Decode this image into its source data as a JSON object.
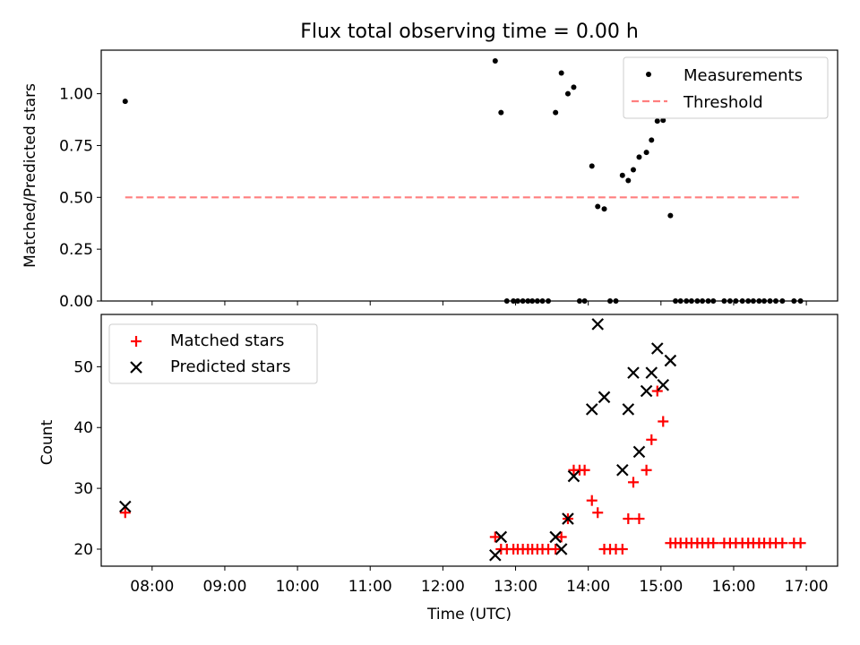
{
  "chart_data": [
    {
      "type": "scatter",
      "title": "Flux total observing time = 0.00 h",
      "xlabel": "",
      "ylabel": "Matched/Predicted stars",
      "ylim": [
        0,
        1.21
      ],
      "y_ticks": [
        0.0,
        0.25,
        0.5,
        0.75,
        1.0
      ],
      "y_tick_labels": [
        "0.00",
        "0.25",
        "0.50",
        "0.75",
        "1.00"
      ],
      "x_ticks_hours": [
        8,
        9,
        10,
        11,
        12,
        13,
        14,
        15,
        16,
        17
      ],
      "legend_position": "top-right",
      "series": [
        {
          "name": "Measurements",
          "marker": "dot",
          "color": "#000000",
          "points": [
            [
              7.63,
              0.963
            ],
            [
              12.72,
              1.158
            ],
            [
              12.8,
              0.909
            ],
            [
              12.88,
              0
            ],
            [
              12.97,
              0
            ],
            [
              13.03,
              0
            ],
            [
              13.1,
              0
            ],
            [
              13.17,
              0
            ],
            [
              13.23,
              0
            ],
            [
              13.3,
              0
            ],
            [
              13.37,
              0
            ],
            [
              13.45,
              0
            ],
            [
              13.55,
              0.909
            ],
            [
              13.63,
              1.1
            ],
            [
              13.72,
              1.0
            ],
            [
              13.8,
              1.031
            ],
            [
              13.88,
              0
            ],
            [
              13.95,
              0
            ],
            [
              14.05,
              0.651
            ],
            [
              14.13,
              0.456
            ],
            [
              14.22,
              0.444
            ],
            [
              14.3,
              0
            ],
            [
              14.38,
              0
            ],
            [
              14.47,
              0.606
            ],
            [
              14.55,
              0.581
            ],
            [
              14.62,
              0.633
            ],
            [
              14.7,
              0.694
            ],
            [
              14.8,
              0.717
            ],
            [
              14.87,
              0.776
            ],
            [
              14.95,
              0.868
            ],
            [
              15.03,
              0.872
            ],
            [
              15.13,
              0.412
            ],
            [
              15.2,
              0
            ],
            [
              15.27,
              0
            ],
            [
              15.35,
              0
            ],
            [
              15.42,
              0
            ],
            [
              15.5,
              0
            ],
            [
              15.57,
              0
            ],
            [
              15.65,
              0
            ],
            [
              15.72,
              0
            ],
            [
              15.87,
              0
            ],
            [
              15.95,
              0
            ],
            [
              16.03,
              0
            ],
            [
              16.12,
              0
            ],
            [
              16.2,
              0
            ],
            [
              16.27,
              0
            ],
            [
              16.35,
              0
            ],
            [
              16.42,
              0
            ],
            [
              16.5,
              0
            ],
            [
              16.58,
              0
            ],
            [
              16.67,
              0
            ],
            [
              16.83,
              0
            ],
            [
              16.92,
              0
            ]
          ]
        },
        {
          "name": "Threshold",
          "style": "dashed",
          "color": "#ff7f7f",
          "x": [
            7.63,
            16.92
          ],
          "y": [
            0.5,
            0.5
          ]
        }
      ]
    },
    {
      "type": "scatter",
      "title": "",
      "xlabel": "Time (UTC)",
      "ylabel": "Count",
      "ylim": [
        17.2,
        58.6
      ],
      "y_ticks": [
        20,
        30,
        40,
        50
      ],
      "y_tick_labels": [
        "20",
        "30",
        "40",
        "50"
      ],
      "x_ticks_hours": [
        8,
        9,
        10,
        11,
        12,
        13,
        14,
        15,
        16,
        17
      ],
      "x_tick_labels": [
        "08:00",
        "09:00",
        "10:00",
        "11:00",
        "12:00",
        "13:00",
        "14:00",
        "15:00",
        "16:00",
        "17:00"
      ],
      "legend_position": "top-left",
      "series": [
        {
          "name": "Matched stars",
          "marker": "plus",
          "color": "#ff0000",
          "points": [
            [
              7.63,
              26
            ],
            [
              12.72,
              22
            ],
            [
              12.8,
              20
            ],
            [
              12.88,
              20
            ],
            [
              12.97,
              20
            ],
            [
              13.03,
              20
            ],
            [
              13.1,
              20
            ],
            [
              13.17,
              20
            ],
            [
              13.23,
              20
            ],
            [
              13.3,
              20
            ],
            [
              13.37,
              20
            ],
            [
              13.45,
              20
            ],
            [
              13.55,
              20
            ],
            [
              13.63,
              22
            ],
            [
              13.72,
              25
            ],
            [
              13.8,
              33
            ],
            [
              13.88,
              33
            ],
            [
              13.95,
              33
            ],
            [
              14.05,
              28
            ],
            [
              14.13,
              26
            ],
            [
              14.22,
              20
            ],
            [
              14.3,
              20
            ],
            [
              14.38,
              20
            ],
            [
              14.47,
              20
            ],
            [
              14.55,
              25
            ],
            [
              14.62,
              31
            ],
            [
              14.7,
              25
            ],
            [
              14.8,
              33
            ],
            [
              14.87,
              38
            ],
            [
              14.95,
              46
            ],
            [
              15.03,
              41
            ],
            [
              15.13,
              21
            ],
            [
              15.2,
              21
            ],
            [
              15.27,
              21
            ],
            [
              15.35,
              21
            ],
            [
              15.42,
              21
            ],
            [
              15.5,
              21
            ],
            [
              15.57,
              21
            ],
            [
              15.65,
              21
            ],
            [
              15.72,
              21
            ],
            [
              15.87,
              21
            ],
            [
              15.95,
              21
            ],
            [
              16.03,
              21
            ],
            [
              16.12,
              21
            ],
            [
              16.2,
              21
            ],
            [
              16.27,
              21
            ],
            [
              16.35,
              21
            ],
            [
              16.42,
              21
            ],
            [
              16.5,
              21
            ],
            [
              16.58,
              21
            ],
            [
              16.67,
              21
            ],
            [
              16.83,
              21
            ],
            [
              16.92,
              21
            ]
          ]
        },
        {
          "name": "Predicted stars",
          "marker": "x",
          "color": "#000000",
          "points": [
            [
              7.63,
              27
            ],
            [
              12.72,
              19
            ],
            [
              12.8,
              22
            ],
            [
              13.55,
              22
            ],
            [
              13.63,
              20
            ],
            [
              13.72,
              25
            ],
            [
              13.8,
              32
            ],
            [
              14.05,
              43
            ],
            [
              14.13,
              57
            ],
            [
              14.22,
              45
            ],
            [
              14.47,
              33
            ],
            [
              14.55,
              43
            ],
            [
              14.62,
              49
            ],
            [
              14.7,
              36
            ],
            [
              14.8,
              46
            ],
            [
              14.87,
              49
            ],
            [
              14.95,
              53
            ],
            [
              15.03,
              47
            ],
            [
              15.13,
              51
            ]
          ]
        }
      ]
    }
  ]
}
